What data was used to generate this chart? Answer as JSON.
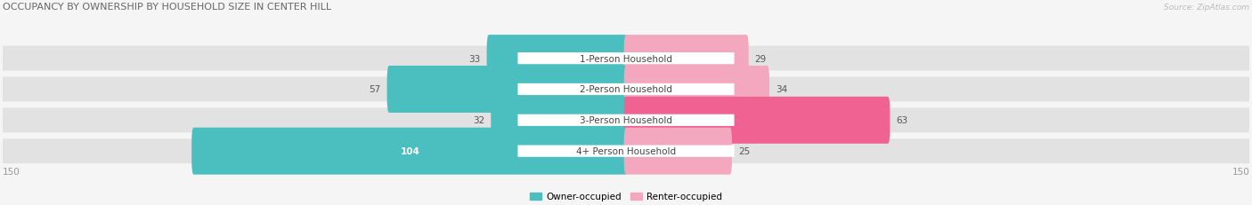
{
  "title": "OCCUPANCY BY OWNERSHIP BY HOUSEHOLD SIZE IN CENTER HILL",
  "source": "Source: ZipAtlas.com",
  "categories": [
    "1-Person Household",
    "2-Person Household",
    "3-Person Household",
    "4+ Person Household"
  ],
  "owner_values": [
    33,
    57,
    32,
    104
  ],
  "renter_values": [
    29,
    34,
    63,
    25
  ],
  "max_val": 150,
  "owner_color": "#4bbfbf",
  "renter_colors": [
    "#f4a8c0",
    "#f4a8c0",
    "#f06292",
    "#f4a8c0"
  ],
  "bg_color": "#f5f5f5",
  "row_bg": "#e2e2e2",
  "label_bg": "#ffffff",
  "title_color": "#666666",
  "value_color": "#555555",
  "axis_label_color": "#999999",
  "legend_owner_color": "#4bbfbf",
  "legend_renter_color": "#f4a8c0"
}
